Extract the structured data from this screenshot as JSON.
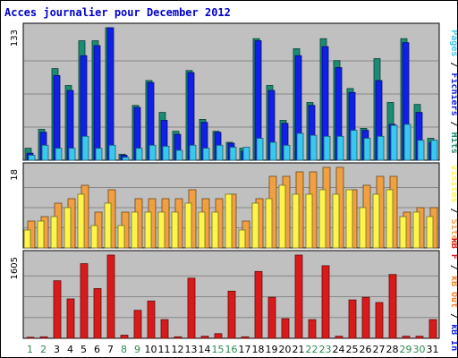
{
  "chart_data": {
    "type": "bar",
    "title": "Acces journalier pour December 2012",
    "colors": {
      "title": "#0000cc",
      "panel_bg": "#c0c0c0",
      "frame": "#000000",
      "grid": "#888888",
      "pages": "#1a8c74",
      "hits": "#38c8f0",
      "fichiers": "#1020e8",
      "visites": "#fff54a",
      "sites": "#f0a040",
      "kb_in": "#d91a1a",
      "kb_out": "#f08020",
      "kb_f": "#d91a1a",
      "weekday_label": "#000000",
      "weekend_label": "#2c8a4c"
    },
    "x_labels": [
      "1",
      "2",
      "3",
      "4",
      "5",
      "6",
      "7",
      "8",
      "9",
      "10",
      "11",
      "12",
      "13",
      "14",
      "15",
      "16",
      "17",
      "18",
      "19",
      "20",
      "21",
      "22",
      "23",
      "24",
      "25",
      "26",
      "27",
      "28",
      "29",
      "30",
      "31"
    ],
    "weekend_days": [
      1,
      2,
      8,
      9,
      15,
      16,
      22,
      23,
      29,
      30
    ],
    "panels": [
      {
        "id": "traffic",
        "ymax_label": "133",
        "ymax": 133,
        "legend": [
          {
            "text": "Pages",
            "color": "#38c8f0"
          },
          {
            "text": " / ",
            "color": "#000000"
          },
          {
            "text": "Fichiers",
            "color": "#1020e8"
          },
          {
            "text": " / ",
            "color": "#000000"
          },
          {
            "text": "Hits",
            "color": "#1a8c74"
          }
        ],
        "series": [
          {
            "name": "Hits",
            "values": [
              12,
              31,
              92,
              75,
              120,
              120,
              133,
              6,
              55,
              80,
              48,
              29,
              90,
              41,
              29,
              18,
              12,
              122,
              75,
              40,
              112,
              58,
              122,
              100,
              72,
              32,
              102,
              58,
              122,
              56,
              22
            ]
          },
          {
            "name": "Fichiers",
            "values": [
              7,
              28,
              85,
              70,
              105,
              115,
              133,
              5,
              53,
              78,
              40,
              26,
              88,
              38,
              28,
              17,
              9,
              120,
              70,
              37,
              105,
              55,
              114,
              93,
              68,
              30,
              80,
              36,
              118,
              48,
              18
            ]
          },
          {
            "name": "Pages",
            "values": [
              5,
              15,
              12,
              12,
              24,
              12,
              15,
              3,
              12,
              15,
              14,
              10,
              15,
              12,
              15,
              13,
              13,
              22,
              18,
              15,
              27,
              25,
              24,
              24,
              30,
              22,
              24,
              35,
              36,
              20,
              20
            ]
          }
        ]
      },
      {
        "id": "visits",
        "ymax_label": "18",
        "ymax": 18,
        "legend": [
          {
            "text": "Visites",
            "color": "#fff54a"
          },
          {
            "text": " / ",
            "color": "#000000"
          },
          {
            "text": "Sites",
            "color": "#f0a040"
          }
        ],
        "series": [
          {
            "name": "Sites",
            "values": [
              6,
              7,
              10,
              11,
              14,
              8,
              13,
              8,
              11,
              11,
              11,
              11,
              13,
              11,
              11,
              12,
              6,
              11,
              16,
              16,
              17,
              17,
              18,
              18,
              13,
              14,
              16,
              16,
              8,
              9,
              9
            ]
          },
          {
            "name": "Visites",
            "values": [
              4,
              6,
              7,
              9,
              12,
              5,
              10,
              5,
              8,
              8,
              8,
              8,
              10,
              8,
              8,
              12,
              4,
              10,
              11,
              14,
              12,
              12,
              13,
              12,
              13,
              9,
              12,
              13,
              7,
              8,
              7
            ]
          }
        ]
      },
      {
        "id": "volume",
        "ymax_label": "1605",
        "ymax": 1605,
        "legend": [
          {
            "text": "kB F",
            "color": "#d91a1a"
          },
          {
            "text": " / ",
            "color": "#000000"
          },
          {
            "text": "kB Out",
            "color": "#f08020"
          },
          {
            "text": " / ",
            "color": "#000000"
          },
          {
            "text": "kB In",
            "color": "#1020e8"
          }
        ],
        "series": [
          {
            "name": "kB F",
            "values": [
              20,
              30,
              1110,
              760,
              1440,
              960,
              1605,
              60,
              540,
              720,
              360,
              30,
              1160,
              40,
              90,
              910,
              30,
              1290,
              790,
              380,
              1605,
              360,
              1400,
              40,
              740,
              790,
              690,
              1230,
              40,
              40,
              360
            ]
          }
        ]
      }
    ]
  }
}
